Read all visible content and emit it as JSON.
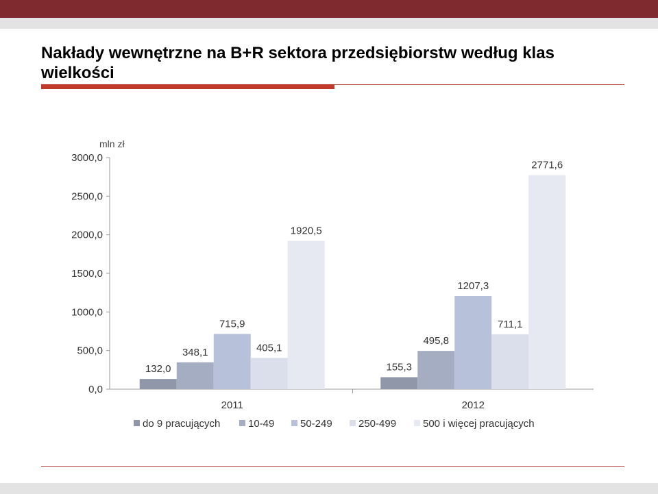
{
  "slide": {
    "title": "Nakłady wewnętrzne na B+R sektora przedsiębiorstw według klas wielkości"
  },
  "colors": {
    "header_band": "#7e2a2e",
    "accent_rule": "#c0392b",
    "series": [
      "#8f97a8",
      "#a4adc2",
      "#b8c1da",
      "#dadfeb",
      "#e6e9f1"
    ]
  },
  "chart_data": {
    "type": "bar",
    "unit_label": "mln zł",
    "categories": [
      "2011",
      "2012"
    ],
    "series": [
      {
        "name": "do 9 pracujących",
        "values": [
          132.0,
          155.3
        ],
        "labels": [
          "132,0",
          "155,3"
        ]
      },
      {
        "name": "10-49",
        "values": [
          348.1,
          495.8
        ],
        "labels": [
          "348,1",
          "495,8"
        ]
      },
      {
        "name": "50-249",
        "values": [
          715.9,
          1207.3
        ],
        "labels": [
          "715,9",
          "1207,3"
        ]
      },
      {
        "name": "250-499",
        "values": [
          405.1,
          711.1
        ],
        "labels": [
          "405,1",
          "711,1"
        ]
      },
      {
        "name": "500 i więcej pracujących",
        "values": [
          1920.5,
          2771.6
        ],
        "labels": [
          "1920,5",
          "2771,6"
        ]
      }
    ],
    "ylim": [
      0,
      3000
    ],
    "yticks": [
      0,
      500,
      1000,
      1500,
      2000,
      2500,
      3000
    ],
    "ytick_labels": [
      "0,0",
      "500,0",
      "1000,0",
      "1500,0",
      "2000,0",
      "2500,0",
      "3000,0"
    ],
    "grid": false,
    "legend_position": "bottom"
  }
}
